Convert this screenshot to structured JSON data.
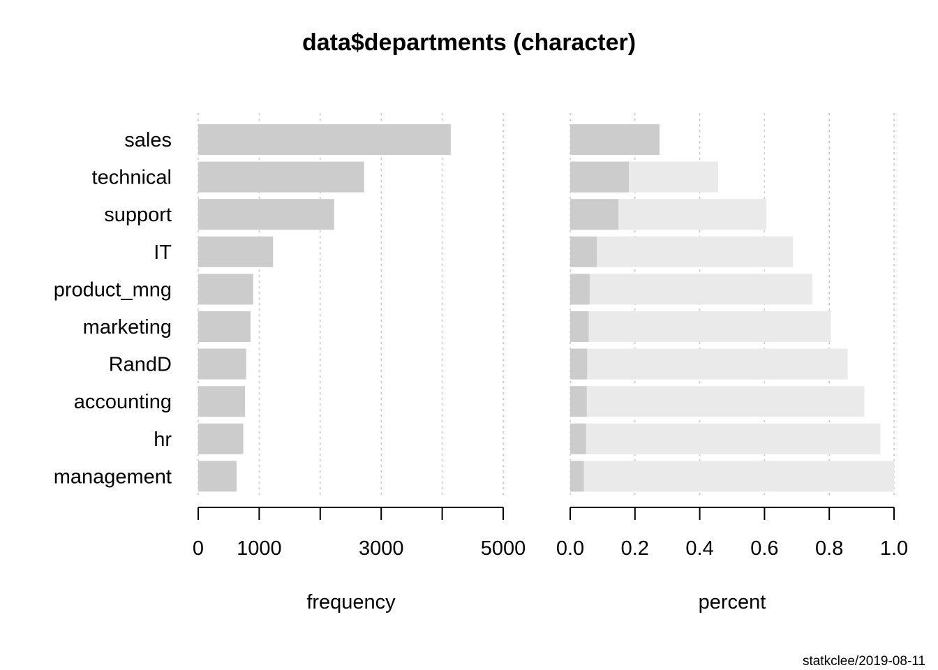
{
  "chart_data": {
    "title": "data$departments (character)",
    "categories": [
      "sales",
      "technical",
      "support",
      "IT",
      "product_mng",
      "marketing",
      "RandD",
      "accounting",
      "hr",
      "management"
    ],
    "panels": [
      {
        "type": "bar",
        "orientation": "horizontal",
        "xlabel": "frequency",
        "xlim": [
          0,
          5000
        ],
        "ticks": [
          0,
          1000,
          2000,
          3000,
          4000,
          5000
        ],
        "tick_labels": [
          "0",
          "1000",
          "",
          "3000",
          "",
          "5000"
        ],
        "grid": true,
        "series": [
          {
            "values": [
              4140,
              2720,
              2229,
              1227,
              902,
              858,
              787,
              767,
              739,
              630
            ]
          }
        ]
      },
      {
        "type": "bar",
        "orientation": "horizontal",
        "stacked": "cumulative",
        "xlabel": "percent",
        "xlim": [
          0,
          1
        ],
        "ticks": [
          0,
          0.2,
          0.4,
          0.6,
          0.8,
          1.0
        ],
        "tick_labels": [
          "0.0",
          "0.2",
          "0.4",
          "0.6",
          "0.8",
          "1.0"
        ],
        "grid": true,
        "series": [
          {
            "values": [
              0.276,
              0.181,
              0.149,
              0.082,
              0.06,
              0.057,
              0.052,
              0.051,
              0.049,
              0.042
            ]
          },
          {
            "values": [
              0.276,
              0.457,
              0.606,
              0.688,
              0.748,
              0.805,
              0.857,
              0.908,
              0.958,
              1.0
            ]
          }
        ]
      }
    ],
    "colors": {
      "bar": "#cccccc",
      "cumulative_bar": "#eaeaea",
      "grid": "#c8c8c8",
      "axis": "#000000"
    }
  },
  "footer": "statkclee/2019-08-11"
}
